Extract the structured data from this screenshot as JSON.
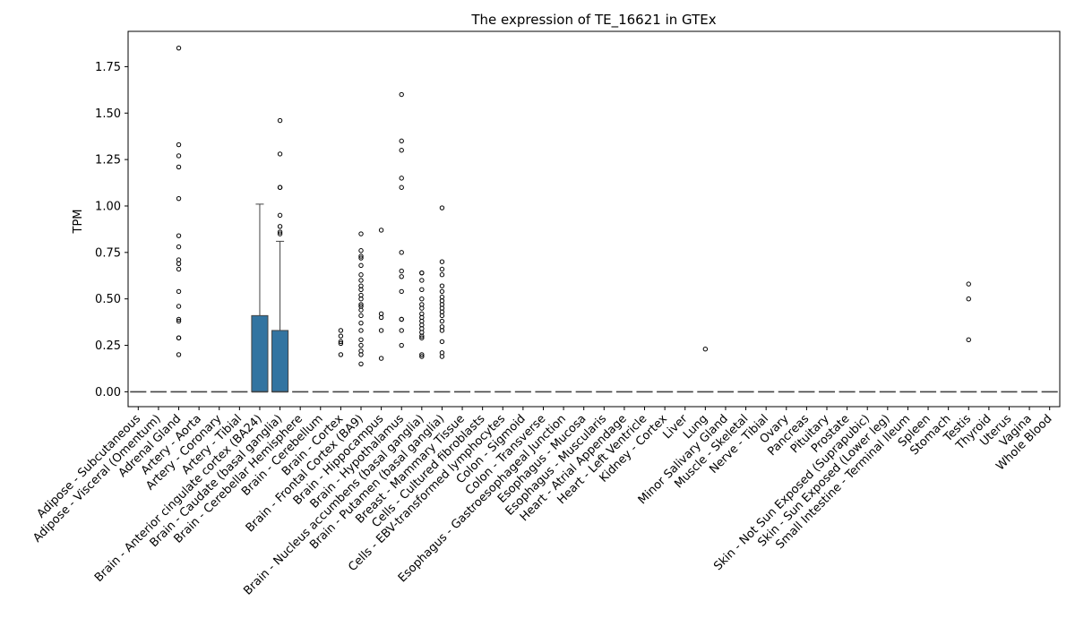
{
  "chart_data": {
    "type": "box",
    "title": "The expression of TE_16621 in GTEx",
    "xlabel": "",
    "ylabel": "TPM",
    "ylim": [
      -0.08,
      1.94
    ],
    "yticks": [
      "0.00",
      "0.25",
      "0.50",
      "0.75",
      "1.00",
      "1.25",
      "1.50",
      "1.75"
    ],
    "grid": false,
    "colors": {
      "box": "#3274a1",
      "median": "#444444",
      "flier": "#000000"
    },
    "categories": [
      "Adipose - Subcutaneous",
      "Adipose - Visceral (Omentum)",
      "Adrenal Gland",
      "Artery - Aorta",
      "Artery - Coronary",
      "Artery - Tibial",
      "Brain - Anterior cingulate cortex (BA24)",
      "Brain - Caudate (basal ganglia)",
      "Brain - Cerebellar Hemisphere",
      "Brain - Cerebellum",
      "Brain - Cortex",
      "Brain - Frontal Cortex (BA9)",
      "Brain - Hippocampus",
      "Brain - Hypothalamus",
      "Brain - Nucleus accumbens (basal ganglia)",
      "Brain - Putamen (basal ganglia)",
      "Breast - Mammary Tissue",
      "Cells - Cultured fibroblasts",
      "Cells - EBV-transformed lymphocytes",
      "Colon - Sigmoid",
      "Colon - Transverse",
      "Esophagus - Gastroesophageal Junction",
      "Esophagus - Mucosa",
      "Esophagus - Muscularis",
      "Heart - Atrial Appendage",
      "Heart - Left Ventricle",
      "Kidney - Cortex",
      "Liver",
      "Lung",
      "Minor Salivary Gland",
      "Muscle - Skeletal",
      "Nerve - Tibial",
      "Ovary",
      "Pancreas",
      "Pituitary",
      "Prostate",
      "Skin - Not Sun Exposed (Suprapubic)",
      "Skin - Sun Exposed (Lower leg)",
      "Small Intestine - Terminal Ileum",
      "Spleen",
      "Stomach",
      "Testis",
      "Thyroid",
      "Uterus",
      "Vagina",
      "Whole Blood"
    ],
    "boxes": [
      {
        "q1": 0,
        "median": 0,
        "q3": 0,
        "whislo": 0,
        "whishi": 0,
        "fliers": []
      },
      {
        "q1": 0,
        "median": 0,
        "q3": 0,
        "whislo": 0,
        "whishi": 0,
        "fliers": []
      },
      {
        "q1": 0,
        "median": 0,
        "q3": 0,
        "whislo": 0,
        "whishi": 0,
        "fliers": [
          1.85,
          1.33,
          1.27,
          1.21,
          1.04,
          0.84,
          0.78,
          0.71,
          0.69,
          0.66,
          0.54,
          0.46,
          0.39,
          0.38,
          0.29,
          0.29,
          0.2
        ]
      },
      {
        "q1": 0,
        "median": 0,
        "q3": 0,
        "whislo": 0,
        "whishi": 0,
        "fliers": []
      },
      {
        "q1": 0,
        "median": 0,
        "q3": 0,
        "whislo": 0,
        "whishi": 0,
        "fliers": []
      },
      {
        "q1": 0,
        "median": 0,
        "q3": 0,
        "whislo": 0,
        "whishi": 0,
        "fliers": []
      },
      {
        "q1": 0,
        "median": 0,
        "q3": 0.41,
        "whislo": 0,
        "whishi": 1.01,
        "fliers": []
      },
      {
        "q1": 0,
        "median": 0,
        "q3": 0.33,
        "whislo": 0,
        "whishi": 0.81,
        "fliers": [
          1.46,
          1.28,
          1.1,
          1.1,
          0.95,
          0.89,
          0.86,
          0.85
        ]
      },
      {
        "q1": 0,
        "median": 0,
        "q3": 0,
        "whislo": 0,
        "whishi": 0,
        "fliers": []
      },
      {
        "q1": 0,
        "median": 0,
        "q3": 0,
        "whislo": 0,
        "whishi": 0,
        "fliers": []
      },
      {
        "q1": 0,
        "median": 0,
        "q3": 0,
        "whislo": 0,
        "whishi": 0,
        "fliers": [
          0.33,
          0.3,
          0.27,
          0.26,
          0.2
        ]
      },
      {
        "q1": 0,
        "median": 0,
        "q3": 0,
        "whislo": 0,
        "whishi": 0,
        "fliers": [
          0.85,
          0.76,
          0.73,
          0.72,
          0.68,
          0.63,
          0.6,
          0.57,
          0.55,
          0.52,
          0.5,
          0.47,
          0.46,
          0.44,
          0.41,
          0.37,
          0.33,
          0.28,
          0.25,
          0.22,
          0.2,
          0.15
        ]
      },
      {
        "q1": 0,
        "median": 0,
        "q3": 0,
        "whislo": 0,
        "whishi": 0,
        "fliers": [
          0.87,
          0.42,
          0.4,
          0.33,
          0.18
        ]
      },
      {
        "q1": 0,
        "median": 0,
        "q3": 0,
        "whislo": 0,
        "whishi": 0,
        "fliers": [
          1.6,
          1.35,
          1.3,
          1.15,
          1.1,
          0.75,
          0.65,
          0.62,
          0.54,
          0.39,
          0.39,
          0.33,
          0.25
        ]
      },
      {
        "q1": 0,
        "median": 0,
        "q3": 0,
        "whislo": 0,
        "whishi": 0,
        "fliers": [
          0.64,
          0.64,
          0.6,
          0.55,
          0.5,
          0.47,
          0.45,
          0.42,
          0.4,
          0.38,
          0.36,
          0.34,
          0.32,
          0.3,
          0.29,
          0.2,
          0.19
        ]
      },
      {
        "q1": 0,
        "median": 0,
        "q3": 0,
        "whislo": 0,
        "whishi": 0,
        "fliers": [
          0.99,
          0.7,
          0.66,
          0.63,
          0.57,
          0.54,
          0.51,
          0.49,
          0.47,
          0.45,
          0.43,
          0.41,
          0.38,
          0.35,
          0.33,
          0.27,
          0.21,
          0.19
        ]
      },
      {
        "q1": 0,
        "median": 0,
        "q3": 0,
        "whislo": 0,
        "whishi": 0,
        "fliers": []
      },
      {
        "q1": 0,
        "median": 0,
        "q3": 0,
        "whislo": 0,
        "whishi": 0,
        "fliers": []
      },
      {
        "q1": 0,
        "median": 0,
        "q3": 0,
        "whislo": 0,
        "whishi": 0,
        "fliers": []
      },
      {
        "q1": 0,
        "median": 0,
        "q3": 0,
        "whislo": 0,
        "whishi": 0,
        "fliers": []
      },
      {
        "q1": 0,
        "median": 0,
        "q3": 0,
        "whislo": 0,
        "whishi": 0,
        "fliers": []
      },
      {
        "q1": 0,
        "median": 0,
        "q3": 0,
        "whislo": 0,
        "whishi": 0,
        "fliers": []
      },
      {
        "q1": 0,
        "median": 0,
        "q3": 0,
        "whislo": 0,
        "whishi": 0,
        "fliers": []
      },
      {
        "q1": 0,
        "median": 0,
        "q3": 0,
        "whislo": 0,
        "whishi": 0,
        "fliers": []
      },
      {
        "q1": 0,
        "median": 0,
        "q3": 0,
        "whislo": 0,
        "whishi": 0,
        "fliers": []
      },
      {
        "q1": 0,
        "median": 0,
        "q3": 0,
        "whislo": 0,
        "whishi": 0,
        "fliers": []
      },
      {
        "q1": 0,
        "median": 0,
        "q3": 0,
        "whislo": 0,
        "whishi": 0,
        "fliers": []
      },
      {
        "q1": 0,
        "median": 0,
        "q3": 0,
        "whislo": 0,
        "whishi": 0,
        "fliers": []
      },
      {
        "q1": 0,
        "median": 0,
        "q3": 0,
        "whislo": 0,
        "whishi": 0,
        "fliers": [
          0.23
        ]
      },
      {
        "q1": 0,
        "median": 0,
        "q3": 0,
        "whislo": 0,
        "whishi": 0,
        "fliers": []
      },
      {
        "q1": 0,
        "median": 0,
        "q3": 0,
        "whislo": 0,
        "whishi": 0,
        "fliers": []
      },
      {
        "q1": 0,
        "median": 0,
        "q3": 0,
        "whislo": 0,
        "whishi": 0,
        "fliers": []
      },
      {
        "q1": 0,
        "median": 0,
        "q3": 0,
        "whislo": 0,
        "whishi": 0,
        "fliers": []
      },
      {
        "q1": 0,
        "median": 0,
        "q3": 0,
        "whislo": 0,
        "whishi": 0,
        "fliers": []
      },
      {
        "q1": 0,
        "median": 0,
        "q3": 0,
        "whislo": 0,
        "whishi": 0,
        "fliers": []
      },
      {
        "q1": 0,
        "median": 0,
        "q3": 0,
        "whislo": 0,
        "whishi": 0,
        "fliers": []
      },
      {
        "q1": 0,
        "median": 0,
        "q3": 0,
        "whislo": 0,
        "whishi": 0,
        "fliers": []
      },
      {
        "q1": 0,
        "median": 0,
        "q3": 0,
        "whislo": 0,
        "whishi": 0,
        "fliers": []
      },
      {
        "q1": 0,
        "median": 0,
        "q3": 0,
        "whislo": 0,
        "whishi": 0,
        "fliers": []
      },
      {
        "q1": 0,
        "median": 0,
        "q3": 0,
        "whislo": 0,
        "whishi": 0,
        "fliers": []
      },
      {
        "q1": 0,
        "median": 0,
        "q3": 0,
        "whislo": 0,
        "whishi": 0,
        "fliers": []
      },
      {
        "q1": 0,
        "median": 0,
        "q3": 0,
        "whislo": 0,
        "whishi": 0,
        "fliers": [
          0.58,
          0.5,
          0.28
        ]
      },
      {
        "q1": 0,
        "median": 0,
        "q3": 0,
        "whislo": 0,
        "whishi": 0,
        "fliers": []
      },
      {
        "q1": 0,
        "median": 0,
        "q3": 0,
        "whislo": 0,
        "whishi": 0,
        "fliers": []
      },
      {
        "q1": 0,
        "median": 0,
        "q3": 0,
        "whislo": 0,
        "whishi": 0,
        "fliers": []
      },
      {
        "q1": 0,
        "median": 0,
        "q3": 0,
        "whislo": 0,
        "whishi": 0,
        "fliers": []
      }
    ]
  }
}
